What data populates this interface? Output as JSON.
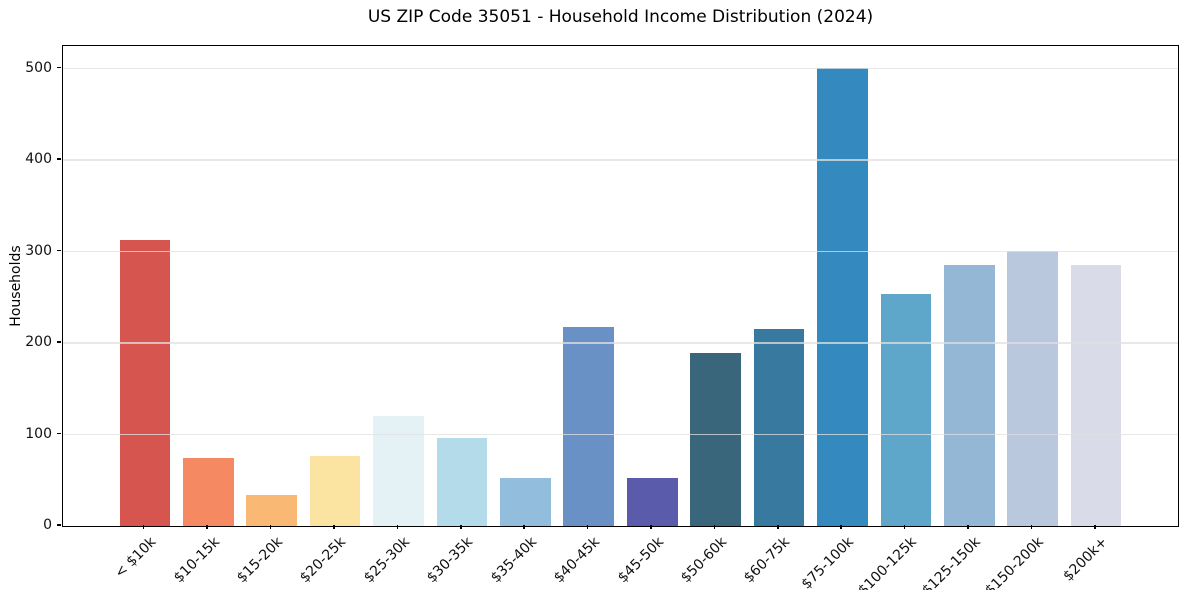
{
  "chart_data": {
    "type": "bar",
    "title": "US ZIP Code 35051 - Household Income Distribution (2024)",
    "xlabel": "",
    "ylabel": "Households",
    "categories": [
      "< $10k",
      "$10-15k",
      "$15-20k",
      "$20-25k",
      "$25-30k",
      "$30-35k",
      "$35-40k",
      "$40-45k",
      "$45-50k",
      "$50-60k",
      "$60-75k",
      "$75-100k",
      "$100-125k",
      "$125-150k",
      "$150-200k",
      "$200k+"
    ],
    "values": [
      313,
      74,
      34,
      77,
      120,
      96,
      52,
      218,
      52,
      189,
      216,
      501,
      254,
      286,
      301,
      285
    ],
    "bar_colors": [
      "#d6564f",
      "#f58962",
      "#f9b873",
      "#fbe3a1",
      "#e4f1f5",
      "#b4dbe9",
      "#93bddd",
      "#6a91c5",
      "#5a5bab",
      "#3a667c",
      "#38799f",
      "#348abf",
      "#5ea6ca",
      "#93b7d5",
      "#b9c8dd",
      "#d9dbe8"
    ],
    "yticks": [
      0,
      100,
      200,
      300,
      400,
      500
    ],
    "ylim": [
      0,
      525
    ],
    "grid": "horizontal",
    "gridline_color": "#e4e4e4",
    "legend": "none",
    "background": "#ffffff"
  }
}
